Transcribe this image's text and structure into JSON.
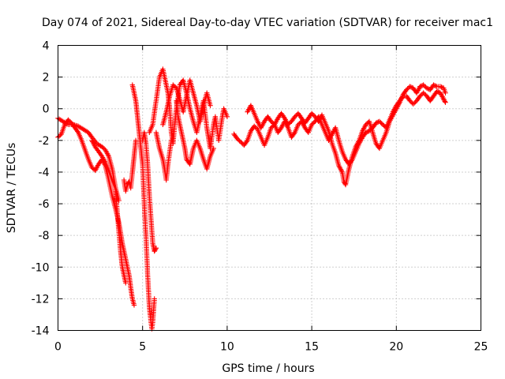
{
  "chart_data": {
    "type": "scatter",
    "title": "Day 074 of 2021, Sidereal Day-to-day VTEC variation (SDTVAR) for receiver mac1",
    "xlabel": "GPS time / hours",
    "ylabel": "SDTVAR / TECUs",
    "xlim": [
      0,
      25
    ],
    "ylim": [
      -14,
      4
    ],
    "xticks": [
      0,
      5,
      10,
      15,
      20,
      25
    ],
    "yticks": [
      -14,
      -12,
      -10,
      -8,
      -6,
      -4,
      -2,
      0,
      2,
      4
    ],
    "grid": true,
    "marker": "+",
    "color": "#ff0000",
    "series": [
      {
        "name": "mac1",
        "segments": [
          [
            [
              0.0,
              -0.6
            ],
            [
              0.3,
              -0.8
            ],
            [
              0.6,
              -1.0
            ],
            [
              0.9,
              -1.0
            ],
            [
              1.2,
              -1.1
            ],
            [
              1.5,
              -1.3
            ],
            [
              1.8,
              -1.5
            ],
            [
              2.0,
              -1.8
            ],
            [
              2.3,
              -2.2
            ],
            [
              2.6,
              -2.4
            ],
            [
              2.8,
              -2.6
            ],
            [
              3.0,
              -3.0
            ],
            [
              3.2,
              -3.8
            ],
            [
              3.4,
              -5.0
            ],
            [
              3.5,
              -6.5
            ],
            [
              3.6,
              -7.8
            ],
            [
              3.7,
              -9.0
            ],
            [
              3.8,
              -10.0
            ],
            [
              3.9,
              -10.5
            ],
            [
              4.0,
              -11.0
            ]
          ],
          [
            [
              0.0,
              -1.8
            ],
            [
              0.2,
              -1.6
            ],
            [
              0.4,
              -1.0
            ],
            [
              0.6,
              -0.7
            ],
            [
              0.8,
              -0.9
            ],
            [
              1.0,
              -1.2
            ],
            [
              1.2,
              -1.5
            ],
            [
              1.4,
              -2.0
            ],
            [
              1.6,
              -2.6
            ],
            [
              1.8,
              -3.2
            ],
            [
              2.0,
              -3.7
            ],
            [
              2.2,
              -3.9
            ],
            [
              2.4,
              -3.5
            ],
            [
              2.6,
              -3.2
            ],
            [
              2.8,
              -3.6
            ],
            [
              3.0,
              -4.5
            ],
            [
              3.2,
              -5.5
            ],
            [
              3.4,
              -6.3
            ],
            [
              3.6,
              -7.2
            ],
            [
              3.8,
              -8.5
            ],
            [
              4.0,
              -9.5
            ],
            [
              4.2,
              -10.5
            ],
            [
              4.3,
              -11.3
            ],
            [
              4.4,
              -12.0
            ],
            [
              4.5,
              -12.4
            ]
          ],
          [
            [
              2.0,
              -2.0
            ],
            [
              2.2,
              -2.4
            ],
            [
              2.4,
              -2.7
            ],
            [
              2.6,
              -3.0
            ],
            [
              2.8,
              -3.4
            ],
            [
              3.0,
              -3.9
            ],
            [
              3.2,
              -4.5
            ],
            [
              3.4,
              -5.0
            ],
            [
              3.6,
              -5.8
            ]
          ],
          [
            [
              3.9,
              -4.5
            ],
            [
              4.0,
              -5.2
            ],
            [
              4.1,
              -4.8
            ],
            [
              4.2,
              -4.6
            ],
            [
              4.3,
              -5.0
            ],
            [
              4.4,
              -4.0
            ],
            [
              4.5,
              -3.0
            ],
            [
              4.6,
              -2.0
            ]
          ],
          [
            [
              4.4,
              1.5
            ],
            [
              4.5,
              1.0
            ],
            [
              4.6,
              0.5
            ],
            [
              4.7,
              -0.5
            ],
            [
              4.8,
              -1.5
            ],
            [
              4.9,
              -2.5
            ],
            [
              5.0,
              -3.5
            ],
            [
              5.1,
              -6.0
            ],
            [
              5.2,
              -8.0
            ],
            [
              5.3,
              -10.5
            ],
            [
              5.4,
              -12.5
            ],
            [
              5.5,
              -13.5
            ],
            [
              5.55,
              -13.9
            ],
            [
              5.6,
              -13.5
            ],
            [
              5.7,
              -12.0
            ]
          ],
          [
            [
              5.0,
              -2.0
            ],
            [
              5.1,
              -1.5
            ],
            [
              5.2,
              -2.2
            ],
            [
              5.3,
              -3.5
            ],
            [
              5.4,
              -5.5
            ],
            [
              5.5,
              -7.0
            ],
            [
              5.6,
              -8.5
            ],
            [
              5.7,
              -9.0
            ],
            [
              5.8,
              -8.8
            ]
          ],
          [
            [
              5.4,
              -1.5
            ],
            [
              5.6,
              -1.0
            ],
            [
              5.8,
              0.5
            ],
            [
              6.0,
              2.0
            ],
            [
              6.2,
              2.5
            ],
            [
              6.3,
              2.0
            ],
            [
              6.5,
              1.0
            ],
            [
              6.6,
              0.0
            ],
            [
              6.7,
              -1.5
            ],
            [
              6.8,
              -2.2
            ],
            [
              6.9,
              -1.0
            ],
            [
              7.0,
              0.0
            ],
            [
              7.2,
              1.5
            ],
            [
              7.4,
              1.8
            ],
            [
              7.6,
              1.0
            ],
            [
              7.8,
              0.0
            ],
            [
              8.0,
              -0.8
            ],
            [
              8.2,
              -1.5
            ],
            [
              8.4,
              -0.5
            ],
            [
              8.6,
              0.5
            ],
            [
              8.8,
              -1.2
            ],
            [
              9.0,
              -2.5
            ],
            [
              9.2,
              -1.0
            ],
            [
              9.3,
              -0.5
            ],
            [
              9.5,
              -2.0
            ],
            [
              9.7,
              -0.6
            ],
            [
              9.8,
              0.0
            ],
            [
              10.0,
              -0.5
            ]
          ],
          [
            [
              5.8,
              -1.5
            ],
            [
              6.0,
              -2.5
            ],
            [
              6.2,
              -3.2
            ],
            [
              6.3,
              -3.8
            ],
            [
              6.4,
              -4.5
            ],
            [
              6.5,
              -3.5
            ],
            [
              6.7,
              -2.0
            ]
          ],
          [
            [
              7.0,
              0.5
            ],
            [
              7.1,
              -0.5
            ],
            [
              7.3,
              -1.5
            ],
            [
              7.5,
              -2.5
            ],
            [
              7.6,
              -3.2
            ],
            [
              7.8,
              -3.5
            ],
            [
              8.0,
              -2.5
            ],
            [
              8.2,
              -2.0
            ],
            [
              8.4,
              -2.5
            ],
            [
              8.6,
              -3.2
            ],
            [
              8.8,
              -3.8
            ],
            [
              9.0,
              -3.0
            ],
            [
              9.2,
              -2.5
            ]
          ],
          [
            [
              6.2,
              -1.0
            ],
            [
              6.4,
              -0.2
            ],
            [
              6.6,
              0.8
            ],
            [
              6.8,
              1.5
            ],
            [
              7.0,
              1.3
            ],
            [
              7.2,
              0.6
            ],
            [
              7.4,
              -0.2
            ],
            [
              7.6,
              0.8
            ],
            [
              7.8,
              1.8
            ],
            [
              8.0,
              1.0
            ],
            [
              8.2,
              0.2
            ],
            [
              8.4,
              -0.8
            ],
            [
              8.6,
              0.2
            ],
            [
              8.8,
              1.0
            ],
            [
              9.0,
              0.2
            ]
          ],
          [
            [
              10.4,
              -1.6
            ],
            [
              10.6,
              -1.9
            ],
            [
              10.8,
              -2.1
            ],
            [
              11.0,
              -2.3
            ],
            [
              11.2,
              -2.0
            ],
            [
              11.4,
              -1.4
            ],
            [
              11.6,
              -1.1
            ],
            [
              11.8,
              -1.3
            ],
            [
              12.0,
              -1.8
            ],
            [
              12.2,
              -2.3
            ],
            [
              12.4,
              -1.8
            ],
            [
              12.6,
              -1.2
            ],
            [
              12.8,
              -1.0
            ],
            [
              13.0,
              -1.5
            ],
            [
              13.2,
              -1.2
            ],
            [
              13.4,
              -0.8
            ],
            [
              13.6,
              -1.2
            ],
            [
              13.8,
              -1.8
            ],
            [
              14.0,
              -1.5
            ],
            [
              14.2,
              -1.0
            ],
            [
              14.4,
              -0.8
            ],
            [
              14.6,
              -1.2
            ],
            [
              14.8,
              -1.5
            ],
            [
              15.0,
              -1.0
            ],
            [
              15.2,
              -0.8
            ],
            [
              15.4,
              -0.5
            ],
            [
              15.6,
              -1.0
            ],
            [
              15.8,
              -1.5
            ],
            [
              16.0,
              -2.0
            ],
            [
              16.2,
              -1.6
            ],
            [
              16.4,
              -1.2
            ],
            [
              16.6,
              -2.0
            ],
            [
              16.8,
              -2.7
            ],
            [
              17.0,
              -3.2
            ],
            [
              17.2,
              -3.5
            ],
            [
              17.4,
              -3.2
            ],
            [
              17.6,
              -2.7
            ],
            [
              17.8,
              -2.2
            ],
            [
              18.0,
              -1.8
            ],
            [
              18.2,
              -1.5
            ],
            [
              18.4,
              -1.4
            ],
            [
              18.6,
              -1.2
            ],
            [
              18.8,
              -0.9
            ],
            [
              19.0,
              -0.8
            ],
            [
              19.2,
              -1.0
            ],
            [
              19.4,
              -1.2
            ],
            [
              19.6,
              -0.7
            ],
            [
              19.8,
              -0.2
            ],
            [
              20.0,
              0.2
            ],
            [
              20.2,
              0.5
            ],
            [
              20.4,
              0.8
            ],
            [
              20.6,
              0.8
            ],
            [
              20.8,
              0.5
            ],
            [
              21.0,
              0.3
            ],
            [
              21.2,
              0.5
            ],
            [
              21.4,
              0.8
            ],
            [
              21.6,
              1.0
            ],
            [
              21.8,
              0.8
            ],
            [
              22.0,
              0.5
            ],
            [
              22.2,
              0.8
            ],
            [
              22.4,
              1.1
            ],
            [
              22.6,
              1.0
            ],
            [
              22.8,
              0.6
            ],
            [
              22.9,
              0.4
            ]
          ],
          [
            [
              11.2,
              -0.2
            ],
            [
              11.4,
              0.2
            ],
            [
              11.6,
              -0.3
            ],
            [
              11.8,
              -0.8
            ],
            [
              12.0,
              -1.2
            ],
            [
              12.2,
              -0.8
            ],
            [
              12.4,
              -0.5
            ],
            [
              12.6,
              -0.8
            ],
            [
              12.8,
              -1.0
            ],
            [
              13.0,
              -0.6
            ],
            [
              13.2,
              -0.3
            ],
            [
              13.4,
              -0.6
            ],
            [
              13.6,
              -1.0
            ],
            [
              13.8,
              -0.8
            ],
            [
              14.0,
              -0.5
            ],
            [
              14.2,
              -0.3
            ],
            [
              14.4,
              -0.6
            ],
            [
              14.6,
              -0.9
            ],
            [
              14.8,
              -0.6
            ],
            [
              15.0,
              -0.3
            ],
            [
              15.2,
              -0.5
            ],
            [
              15.4,
              -0.8
            ],
            [
              15.6,
              -0.4
            ],
            [
              15.8,
              -0.9
            ],
            [
              16.0,
              -1.4
            ],
            [
              16.2,
              -2.2
            ],
            [
              16.4,
              -2.8
            ],
            [
              16.6,
              -3.6
            ],
            [
              16.8,
              -4.0
            ],
            [
              16.9,
              -4.6
            ],
            [
              17.0,
              -4.8
            ],
            [
              17.2,
              -3.8
            ],
            [
              17.4,
              -3.0
            ],
            [
              17.6,
              -2.4
            ],
            [
              17.8,
              -2.0
            ],
            [
              18.0,
              -1.4
            ],
            [
              18.2,
              -1.0
            ],
            [
              18.4,
              -0.8
            ],
            [
              18.6,
              -1.5
            ],
            [
              18.8,
              -2.2
            ],
            [
              19.0,
              -2.5
            ],
            [
              19.2,
              -2.0
            ],
            [
              19.4,
              -1.5
            ],
            [
              19.6,
              -0.8
            ],
            [
              19.8,
              -0.4
            ],
            [
              20.0,
              0.0
            ],
            [
              20.2,
              0.4
            ],
            [
              20.4,
              0.9
            ],
            [
              20.6,
              1.2
            ],
            [
              20.8,
              1.4
            ],
            [
              21.0,
              1.3
            ],
            [
              21.2,
              1.0
            ],
            [
              21.4,
              1.4
            ],
            [
              21.6,
              1.5
            ],
            [
              21.8,
              1.3
            ],
            [
              22.0,
              1.2
            ],
            [
              22.2,
              1.5
            ],
            [
              22.4,
              1.4
            ],
            [
              22.6,
              1.4
            ],
            [
              22.8,
              1.3
            ],
            [
              22.9,
              1.0
            ]
          ]
        ]
      }
    ]
  }
}
